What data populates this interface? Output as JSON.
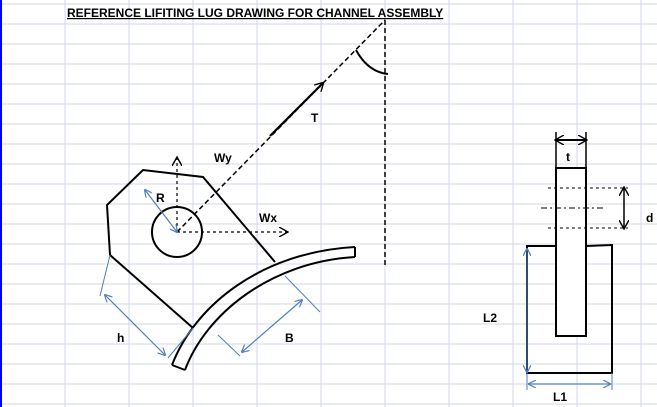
{
  "title": "REFERENCE LIFITING LUG DRAWING FOR CHANNEL ASSEMBLY",
  "labels": {
    "T": "T",
    "Wy": "Wy",
    "Wx": "Wx",
    "R": "R",
    "h": "h",
    "B": "B",
    "t": "t",
    "d": "d",
    "L2": "L2",
    "L1": "L1"
  },
  "colors": {
    "gridline": "#d0d7e5",
    "line": "#000000",
    "dimension": "#4f7fbf",
    "accent_border": "#0000ff"
  },
  "icons": {
    "force_arrow": "arrow-icon"
  }
}
